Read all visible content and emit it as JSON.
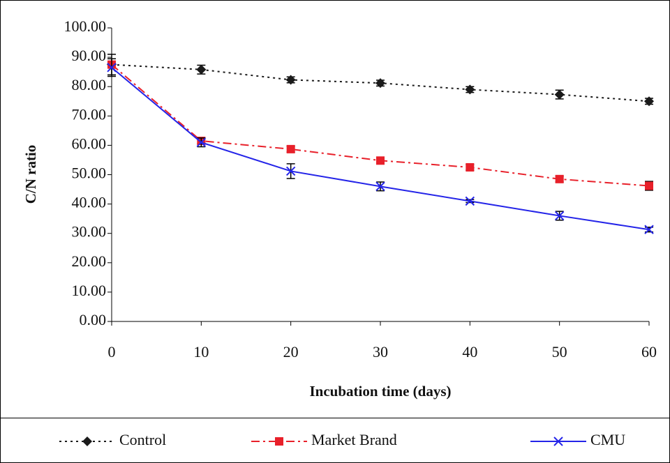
{
  "chart_data": {
    "type": "line",
    "x_label": "Incubation time (days)",
    "y_label": "C/N ratio",
    "x": [
      0,
      10,
      20,
      30,
      40,
      50,
      60
    ],
    "xlim": [
      0,
      60
    ],
    "xticks": [
      0,
      10,
      20,
      30,
      40,
      50,
      60
    ],
    "ylim": [
      0,
      100
    ],
    "yticks": [
      {
        "value": 0,
        "label": "0.00"
      },
      {
        "value": 10,
        "label": "10.00"
      },
      {
        "value": 20,
        "label": "20.00"
      },
      {
        "value": 30,
        "label": "30.00"
      },
      {
        "value": 40,
        "label": "40.00"
      },
      {
        "value": 50,
        "label": "50.00"
      },
      {
        "value": 60,
        "label": "60.00"
      },
      {
        "value": 70,
        "label": "70.00"
      },
      {
        "value": 80,
        "label": "80.00"
      },
      {
        "value": 90,
        "label": "90.00"
      },
      {
        "value": 100,
        "label": "100.00"
      }
    ],
    "legend": "bottom",
    "series": [
      {
        "name": "Control",
        "color": "#1a1a1a",
        "marker": "diamond",
        "dash": "dot",
        "values": [
          87.5,
          85.8,
          82.3,
          81.2,
          79.0,
          77.3,
          75.0
        ],
        "errors": [
          3.5,
          1.5,
          1.0,
          1.0,
          1.0,
          1.5,
          1.0
        ]
      },
      {
        "name": "Market Brand",
        "color": "#e8202a",
        "marker": "square",
        "dash": "dashdot",
        "values": [
          87.5,
          61.5,
          58.7,
          54.8,
          52.5,
          48.5,
          46.2
        ],
        "errors": [
          1.0,
          1.0,
          1.0,
          1.0,
          1.0,
          1.0,
          1.5
        ]
      },
      {
        "name": "CMU",
        "color": "#2424e8",
        "marker": "x",
        "dash": "solid",
        "values": [
          86.5,
          61.0,
          51.2,
          46.0,
          41.0,
          36.0,
          31.3
        ],
        "errors": [
          3.0,
          1.5,
          2.5,
          1.5,
          0.5,
          1.5,
          0.8
        ]
      }
    ]
  }
}
